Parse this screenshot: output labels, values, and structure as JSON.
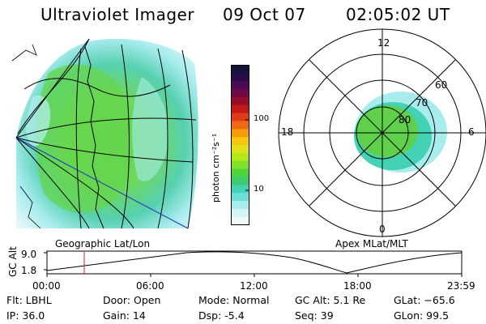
{
  "header": {
    "title": "Ultraviolet Imager",
    "date": "09 Oct 07",
    "time": "02:05:02 UT"
  },
  "colorbar": {
    "unit_label": "photon cm⁻²s⁻¹",
    "ticks": [
      "100",
      "10"
    ],
    "colors": [
      "#14143a",
      "#2a0c4a",
      "#4b0a55",
      "#6e0a45",
      "#960d2a",
      "#c41818",
      "#e03a1a",
      "#f06a14",
      "#f59a0a",
      "#f6c80e",
      "#e0e01c",
      "#b4e61c",
      "#7ee228",
      "#4cd63c",
      "#3ccc6e",
      "#44d2b4",
      "#6ae0d8",
      "#a6ecee",
      "#d2f4f4",
      "#eefafa"
    ]
  },
  "polar": {
    "mlt_labels": [
      "12",
      "18",
      "6",
      "0"
    ],
    "lat_labels": [
      "60",
      "70",
      "80"
    ]
  },
  "map_labels": {
    "left": "Geographic Lat/Lon",
    "right": "Apex MLat/MLT"
  },
  "altitude_plot": {
    "axis_label": "GC Alt",
    "y_ticks": [
      "9.0",
      "1.8"
    ],
    "x_ticks": [
      "00:00",
      "06:00",
      "12:00",
      "18:00",
      "23:59"
    ],
    "marker_color": "#e02020"
  },
  "info": {
    "flt": "Flt: LBHL",
    "ip": "IP: 36.0",
    "door": "Door: Open",
    "gain": "Gain: 14",
    "mode": "Mode: Normal",
    "dsp": "Dsp:    -5.4",
    "gcalt": "GC Alt: 5.1 Re",
    "seq": "Seq: 39",
    "glat": "GLat:  −65.6",
    "glon": "GLon:  99.5"
  }
}
